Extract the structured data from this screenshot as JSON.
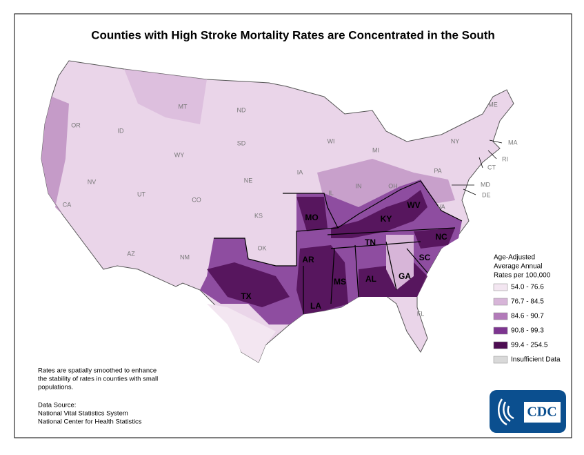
{
  "title": "Counties with High Stroke Mortality Rates are Concentrated in the South",
  "legend": {
    "title": [
      "Age-Adjusted",
      "Average Annual",
      "Rates per 100,000"
    ],
    "items": [
      {
        "label": "54.0 - 76.6",
        "color": "#f3e6f1"
      },
      {
        "label": "76.7 - 84.5",
        "color": "#d7b5d8"
      },
      {
        "label": "84.6 - 90.7",
        "color": "#b27ab9"
      },
      {
        "label": "90.8 - 99.3",
        "color": "#7d3590"
      },
      {
        "label": "99.4 - 254.5",
        "color": "#4d0d52"
      },
      {
        "label": "Insufficient Data",
        "color": "#d9d9d9"
      }
    ]
  },
  "note": [
    "Rates are spatially smoothed to enhance",
    "the stability of rates in counties with small",
    "populations."
  ],
  "source": [
    "Data Source:",
    "National Vital Statistics System",
    "National Center for Health Statistics"
  ],
  "logo": "CDC",
  "state_labels_major": [
    "MO",
    "KY",
    "WV",
    "AR",
    "TN",
    "NC",
    "SC",
    "MS",
    "AL",
    "GA",
    "LA",
    "TX"
  ],
  "state_labels_minor": [
    "MT",
    "ND",
    "OR",
    "ID",
    "WY",
    "SD",
    "WI",
    "MI",
    "NY",
    "ME",
    "PA",
    "OH",
    "IA",
    "NE",
    "NV",
    "UT",
    "CO",
    "CA",
    "KS",
    "OK",
    "AZ",
    "NM",
    "FL",
    "VA",
    "IL",
    "IN",
    "MA",
    "RI",
    "CT",
    "MD",
    "DE"
  ]
}
